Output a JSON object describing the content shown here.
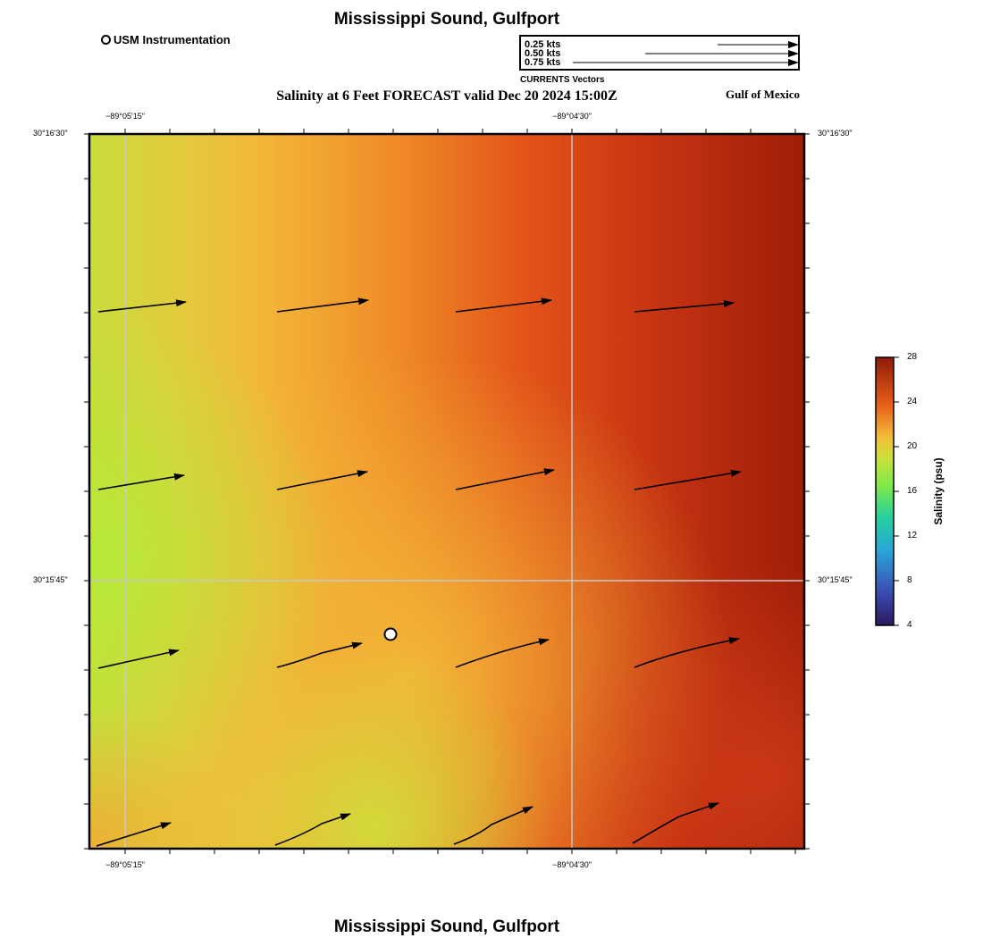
{
  "title": "Mississippi Sound, Gulfport",
  "bottom_title": "Mississippi Sound, Gulfport",
  "subtitle": "Salinity at 6 Feet FORECAST valid Dec 20 2024 15:00Z",
  "region_label": "Gulf of Mexico",
  "station_legend": {
    "label": "USM Instrumentation",
    "icon": "circle-marker"
  },
  "vector_legend": {
    "caption": "CURRENTS Vectors",
    "rows": [
      {
        "label": "0.25 kts",
        "speed": 0.25
      },
      {
        "label": "0.50 kts",
        "speed": 0.5
      },
      {
        "label": "0.75 kts",
        "speed": 0.75
      }
    ]
  },
  "axes": {
    "top_labels": [
      "−89°05'15\"",
      "−89°04'30\""
    ],
    "bottom_labels": [
      "−89°05'15\"",
      "−89°04'30\""
    ],
    "left_labels": [
      "30°16'30\"",
      "30°15'45\""
    ],
    "right_labels": [
      "30°16'30\"",
      "30°15'45\""
    ]
  },
  "colorbar": {
    "title": "Salinity (psu)",
    "min": 4,
    "max": 28,
    "tick_labels": [
      "28",
      "24",
      "20",
      "16",
      "12",
      "8",
      "4"
    ]
  },
  "colors": {
    "low": "#2b1a5a",
    "mid_low": "#2aa6d8",
    "mid": "#b8e83a",
    "mid_high": "#f5b433",
    "high": "#e25312",
    "max": "#8e1a07",
    "grid": "#c8c8c8"
  },
  "map_data": {
    "field": "salinity",
    "units": "psu",
    "grid_lines": true,
    "station": {
      "name": "USM Instrumentation"
    }
  }
}
